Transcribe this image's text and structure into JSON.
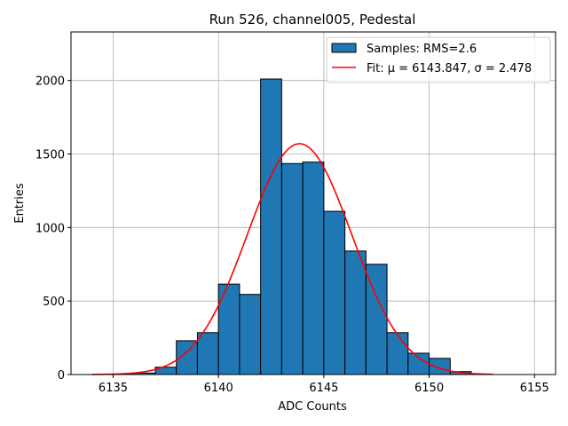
{
  "chart_data": {
    "type": "bar",
    "title": "Run 526, channel005, Pedestal",
    "xlabel": "ADC Counts",
    "ylabel": "Entries",
    "xlim": [
      6133,
      6156
    ],
    "ylim": [
      0,
      2330
    ],
    "xticks": [
      6135,
      6140,
      6145,
      6150,
      6155
    ],
    "yticks": [
      0,
      500,
      1000,
      1500,
      2000
    ],
    "grid": true,
    "legend_position": "top-right",
    "histogram": {
      "name": "Samples: RMS=2.6",
      "color": "#1f77b4",
      "bin_edges": [
        6135,
        6136,
        6137,
        6138,
        6139,
        6140,
        6141,
        6142,
        6143,
        6144,
        6145,
        6146,
        6147,
        6148,
        6149,
        6150,
        6151,
        6152,
        6153
      ],
      "counts": [
        3,
        10,
        50,
        230,
        285,
        615,
        545,
        2010,
        1435,
        1445,
        1110,
        840,
        750,
        285,
        145,
        110,
        20,
        3
      ]
    },
    "fit": {
      "name": "Fit: μ = 6143.847, σ = 2.478",
      "color": "#ff0000",
      "mu": 6143.847,
      "sigma": 2.478,
      "peak": 1570,
      "x_range": [
        6134,
        6153
      ]
    }
  }
}
